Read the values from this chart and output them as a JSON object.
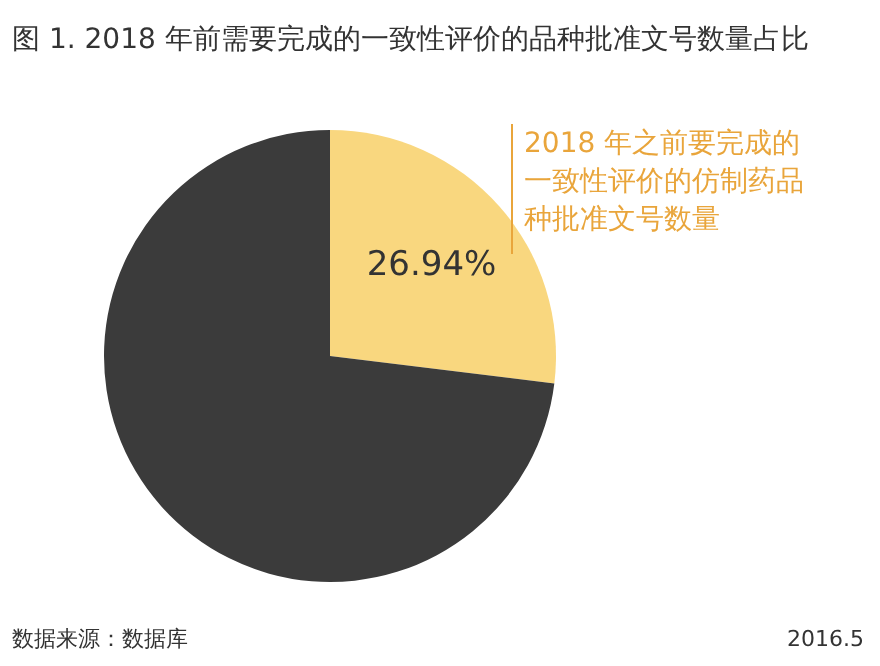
{
  "chart_data": {
    "type": "pie",
    "title": "图 1. 2018 年前需要完成的一致性评价的品种批准文号数量占比",
    "categories": [
      "2018 年之前要完成的一致性评价的仿制药品种批准文号数量",
      null
    ],
    "values": [
      26.94,
      73.06
    ],
    "colors": [
      "#f9d77f",
      "#3b3b3b"
    ],
    "value_labels": [
      "26.94%",
      null
    ],
    "annotations": [
      "数据来源：数据库",
      "2016.5"
    ]
  }
}
